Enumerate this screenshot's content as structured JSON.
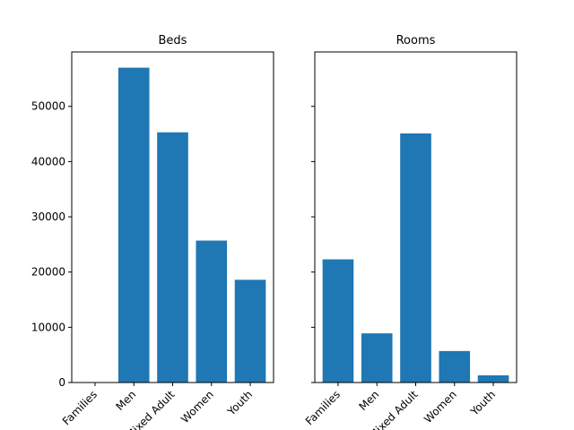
{
  "chart_data": [
    {
      "type": "bar",
      "title": "Beds",
      "categories": [
        "Families",
        "Men",
        "Mixed Adult",
        "Women",
        "Youth"
      ],
      "values": [
        0,
        57000,
        45300,
        25700,
        18600
      ],
      "ylim": [
        0,
        59850
      ],
      "yticks": [
        0,
        10000,
        20000,
        30000,
        40000,
        50000
      ],
      "color": "#1f77b4",
      "xlabel": "",
      "ylabel": ""
    },
    {
      "type": "bar",
      "title": "Rooms",
      "categories": [
        "Families",
        "Men",
        "Mixed Adult",
        "Women",
        "Youth"
      ],
      "values": [
        22300,
        8900,
        45100,
        5700,
        1300
      ],
      "ylim": [
        0,
        59850
      ],
      "yticks": [
        0,
        10000,
        20000,
        30000,
        40000,
        50000
      ],
      "sharey": true,
      "color": "#1f77b4",
      "xlabel": "",
      "ylabel": ""
    }
  ]
}
